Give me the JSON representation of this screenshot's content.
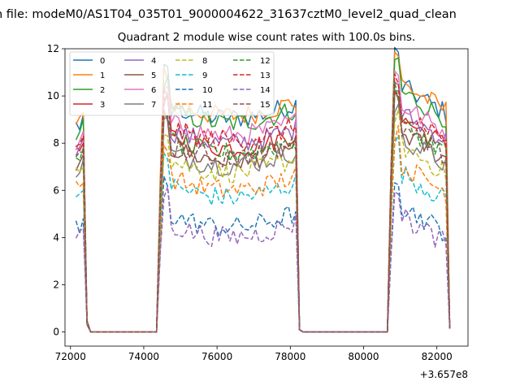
{
  "chart_data": {
    "type": "line",
    "suptitle": "n file: modeM0/AS1T04_035T01_9000004622_31637cztM0_level2_quad_clean",
    "title": "Quadrant 2 module wise count rates with 100.0s bins.",
    "xlabel": "",
    "ylabel": "",
    "x_offset_label": "+3.657e8",
    "xlim": [
      71850,
      82850
    ],
    "ylim": [
      -0.6,
      12.0
    ],
    "xticks": [
      72000,
      74000,
      76000,
      78000,
      80000,
      82000
    ],
    "yticks": [
      0,
      2,
      4,
      6,
      8,
      10,
      12
    ],
    "x_start": 72150,
    "x_step": 100,
    "x_end": 82350,
    "gaps": [
      {
        "drop_start": 72350,
        "zero_start": 72550,
        "zero_end": 74350,
        "rise_end": 74550
      },
      {
        "drop_start": 78150,
        "zero_start": 78350,
        "zero_end": 80650,
        "rise_end": 80850
      }
    ],
    "series": [
      {
        "name": "0",
        "level": 9.2,
        "dash": false,
        "color": "#1f77b4"
      },
      {
        "name": "1",
        "level": 9.3,
        "dash": false,
        "color": "#ff7f0e"
      },
      {
        "name": "2",
        "level": 9.0,
        "dash": false,
        "color": "#2ca02c"
      },
      {
        "name": "3",
        "level": 8.0,
        "dash": false,
        "color": "#d62728"
      },
      {
        "name": "4",
        "level": 8.2,
        "dash": false,
        "color": "#9467bd"
      },
      {
        "name": "5",
        "level": 7.5,
        "dash": false,
        "color": "#8c564b"
      },
      {
        "name": "6",
        "level": 8.5,
        "dash": false,
        "color": "#e377c2"
      },
      {
        "name": "7",
        "level": 7.3,
        "dash": false,
        "color": "#7f7f7f"
      },
      {
        "name": "8",
        "level": 7.0,
        "dash": true,
        "color": "#bcbd22"
      },
      {
        "name": "9",
        "level": 6.0,
        "dash": true,
        "color": "#17becf"
      },
      {
        "name": "10",
        "level": 4.8,
        "dash": true,
        "color": "#1f77b4"
      },
      {
        "name": "11",
        "level": 6.3,
        "dash": true,
        "color": "#ff7f0e"
      },
      {
        "name": "12",
        "level": 7.8,
        "dash": true,
        "color": "#2ca02c"
      },
      {
        "name": "13",
        "level": 8.3,
        "dash": true,
        "color": "#d62728"
      },
      {
        "name": "14",
        "level": 4.4,
        "dash": true,
        "color": "#9467bd"
      },
      {
        "name": "15",
        "level": 7.6,
        "dash": true,
        "color": "#8c564b"
      }
    ],
    "legend_position": "upper-left",
    "legend_columns": 4
  }
}
